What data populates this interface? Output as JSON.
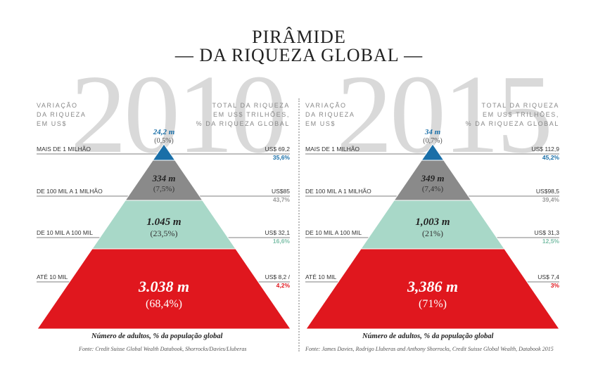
{
  "title": {
    "line1": "PIRÂMIDE",
    "line2": "— DA RIQUEZA GLOBAL —"
  },
  "headers": {
    "left": [
      "VARIAÇÃO",
      "DA RIQUEZA",
      "EM US$"
    ],
    "right": [
      "TOTAL DA RIQUEZA",
      "EM US$ TRILHÕES,",
      "% DA RIQUEZA GLOBAL"
    ]
  },
  "colors": {
    "top": "#1a6fa8",
    "second": "#8a8a8a",
    "third": "#a8d8c8",
    "bottom": "#e0171e"
  },
  "chart_data": [
    {
      "type": "pyramid",
      "year": "2010",
      "levels": [
        "MAIS DE 1 MILHÃO",
        "DE 100 MIL A 1 MILHÃO",
        "DE 10 MIL A 100 MIL",
        "ATÉ 10 MIL"
      ],
      "adults": [
        "24,2 m",
        "334 m",
        "1.045 m",
        "3.038 m"
      ],
      "adults_pct": [
        "(0,5%)",
        "(7,5%)",
        "(23,5%)",
        "(68,4%)"
      ],
      "wealth": [
        "US$ 69,2",
        "US$85",
        "US$ 32,1",
        "US$ 8,2 /"
      ],
      "wealth_pct": [
        "35,6%",
        "43,7%",
        "16,6%",
        "4,2%"
      ],
      "footer": "Número de adultos, % da população global",
      "source": "Fonte: Credit Suisse Global Wealth Databook, Shorrocks/Davies/Lluberas"
    },
    {
      "type": "pyramid",
      "year": "2015",
      "levels": [
        "MAIS DE 1 MILHÃO",
        "DE 100 MIL A 1 MILHÃO",
        "DE 10 MIL A 100 MIL",
        "ATÉ 10 MIL"
      ],
      "adults": [
        "34 m",
        "349 m",
        "1,003 m",
        "3,386 m"
      ],
      "adults_pct": [
        "(0,7%)",
        "(7,4%)",
        "(21%)",
        "(71%)"
      ],
      "wealth": [
        "US$ 112,9",
        "US$98,5",
        "US$ 31,3",
        "US$ 7,4"
      ],
      "wealth_pct": [
        "45,2%",
        "39,4%",
        "12,5%",
        "3%"
      ],
      "footer": "Número de adultos, % da população global",
      "source": "Fonte: James Davies, Rodrigo Lluberas and Anthony Shorrocks, Credit Suisse Global Wealth, Databook 2015"
    }
  ]
}
